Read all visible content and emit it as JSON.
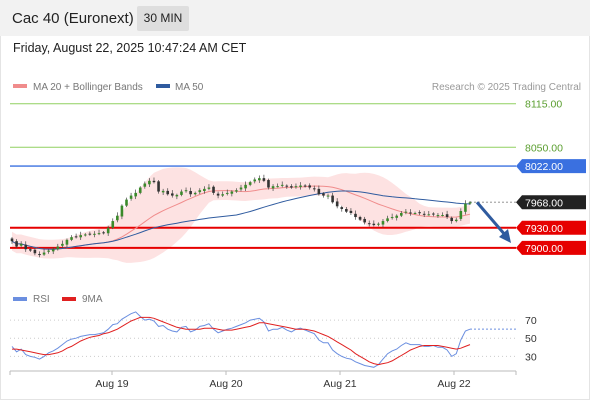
{
  "header": {
    "title": "Cac 40 (Euronext)",
    "interval": "30 MIN",
    "datetime": "Friday, August 22, 2025 10:47:24 AM CET"
  },
  "legend": {
    "ma20": "MA 20 + Bollinger Bands",
    "ma50": "MA 50",
    "credit": "Research © 2025 Trading Central",
    "rsi": "RSI",
    "ma9": "9MA"
  },
  "colors": {
    "ma20": "#f08c8c",
    "ma50": "#2f5b9f",
    "bollinger_fill": "#fde2e2",
    "resistance_green": "#90d060",
    "resistance_blue": "#3a70e0",
    "support_red": "#e60000",
    "current_price": "#222222",
    "arrow": "#2f5b9f",
    "rsi": "#6b8fe0",
    "rsi_ma": "#e02020",
    "candle_up": "#3a8a2a",
    "candle_down": "#333333"
  },
  "chart_data": [
    {
      "type": "candlestick",
      "y_range": [
        7870,
        8125
      ],
      "x_ticks": [
        "Aug 19",
        "Aug 20",
        "Aug 21",
        "Aug 22"
      ],
      "levels": [
        {
          "value": 8115.0,
          "label": "8115.00",
          "kind": "resistance-light"
        },
        {
          "value": 8050.0,
          "label": "8050.00",
          "kind": "resistance-light"
        },
        {
          "value": 8022.0,
          "label": "8022.00",
          "kind": "resistance"
        },
        {
          "value": 7968.0,
          "label": "7968.00",
          "kind": "current"
        },
        {
          "value": 7930.0,
          "label": "7930.00",
          "kind": "support"
        },
        {
          "value": 7900.0,
          "label": "7900.00",
          "kind": "support"
        }
      ],
      "close": [
        7910,
        7902,
        7906,
        7898,
        7896,
        7892,
        7890,
        7893,
        7896,
        7898,
        7902,
        7906,
        7912,
        7916,
        7917,
        7919,
        7920,
        7921,
        7921,
        7922,
        7923,
        7930,
        7940,
        7948,
        7963,
        7972,
        7978,
        7982,
        7990,
        7996,
        8000,
        7998,
        7984,
        7985,
        7980,
        7978,
        7979,
        7984,
        7986,
        7980,
        7982,
        7986,
        7988,
        7990,
        7982,
        7978,
        7980,
        7982,
        7984,
        7986,
        7990,
        7994,
        7998,
        8002,
        8004,
        8000,
        7990,
        7992,
        7992,
        7994,
        7992,
        7990,
        7992,
        7993,
        7992,
        7990,
        7988,
        7980,
        7978,
        7978,
        7968,
        7962,
        7958,
        7954,
        7952,
        7946,
        7942,
        7938,
        7936,
        7934,
        7936,
        7940,
        7944,
        7946,
        7948,
        7952,
        7954,
        7952,
        7952,
        7952,
        7950,
        7950,
        7950,
        7949,
        7949,
        7946,
        7940,
        7942,
        7955,
        7966,
        7968
      ]
    },
    {
      "type": "line",
      "series": [
        {
          "name": "RSI",
          "values": [
            41,
            35,
            38,
            32,
            30,
            29,
            27,
            30,
            34,
            36,
            39,
            43,
            47,
            49,
            50,
            52,
            53,
            54,
            54,
            55,
            56,
            60,
            65,
            66,
            71,
            74,
            77,
            79,
            74,
            70,
            71,
            69,
            63,
            64,
            60,
            58,
            57,
            62,
            63,
            57,
            59,
            63,
            64,
            66,
            60,
            56,
            58,
            60,
            61,
            63,
            65,
            67,
            70,
            71,
            72,
            68,
            58,
            60,
            60,
            62,
            59,
            57,
            60,
            61,
            59,
            57,
            55,
            48,
            45,
            45,
            37,
            33,
            30,
            28,
            27,
            24,
            22,
            20,
            19,
            18,
            21,
            27,
            33,
            36,
            38,
            42,
            45,
            43,
            43,
            43,
            41,
            41,
            42,
            40,
            40,
            37,
            30,
            33,
            48,
            58,
            60
          ]
        },
        {
          "name": "9MA",
          "values": [
            38,
            38,
            37,
            36,
            35,
            34,
            33,
            32,
            32,
            33,
            34,
            36,
            39,
            41,
            44,
            47,
            49,
            51,
            52,
            53,
            55,
            56,
            58,
            60,
            63,
            66,
            69,
            71,
            73,
            73,
            73,
            72,
            70,
            68,
            66,
            64,
            62,
            61,
            60,
            60,
            60,
            60,
            61,
            61,
            61,
            60,
            59,
            59,
            59,
            60,
            61,
            62,
            63,
            65,
            67,
            67,
            66,
            65,
            64,
            63,
            62,
            61,
            60,
            60,
            60,
            59,
            58,
            56,
            54,
            52,
            49,
            46,
            43,
            40,
            37,
            33,
            30,
            27,
            24,
            22,
            21,
            22,
            23,
            25,
            28,
            31,
            34,
            37,
            39,
            41,
            42,
            42,
            42,
            42,
            41,
            40,
            39,
            38,
            39,
            41,
            43
          ]
        }
      ],
      "y_ticks": [
        70,
        50,
        30
      ],
      "y_range": [
        15,
        80
      ]
    }
  ]
}
